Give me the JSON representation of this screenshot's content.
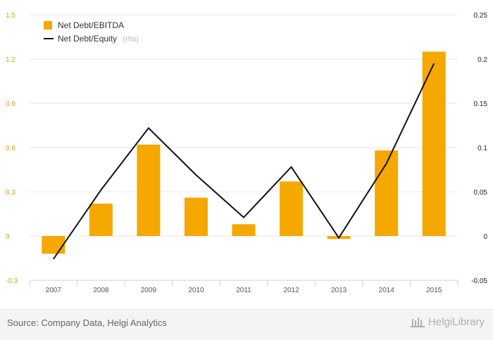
{
  "chart_data": {
    "type": "bar+line",
    "categories": [
      "2007",
      "2008",
      "2009",
      "2010",
      "2011",
      "2012",
      "2013",
      "2014",
      "2015"
    ],
    "series": [
      {
        "name": "Net Debt/EBITDA",
        "type": "bar",
        "axis": "left",
        "color": "#f5a800",
        "values": [
          -0.12,
          0.22,
          0.62,
          0.26,
          0.08,
          0.37,
          -0.02,
          0.58,
          1.25
        ]
      },
      {
        "name": "Net Debt/Equity",
        "legend_suffix": "(rhs)",
        "type": "line",
        "axis": "right",
        "color": "#111111",
        "values": [
          -0.026,
          0.052,
          0.122,
          0.069,
          0.021,
          0.078,
          -0.002,
          0.082,
          0.195
        ]
      }
    ],
    "y_left": {
      "ylim": [
        -0.3,
        1.5
      ],
      "ticks": [
        "-0.3",
        "0",
        "0.3",
        "0.6",
        "0.9",
        "1.2",
        "1.5"
      ]
    },
    "y_right": {
      "ylim": [
        -0.05,
        0.25
      ],
      "ticks": [
        "-0.05",
        "0",
        "0.05",
        "0.1",
        "0.15",
        "0.2",
        "0.25"
      ]
    },
    "grid": true,
    "legend": "top-left"
  },
  "footer": {
    "source": "Source: Company Data, Helgi Analytics",
    "brand": "HelgiLibrary"
  }
}
